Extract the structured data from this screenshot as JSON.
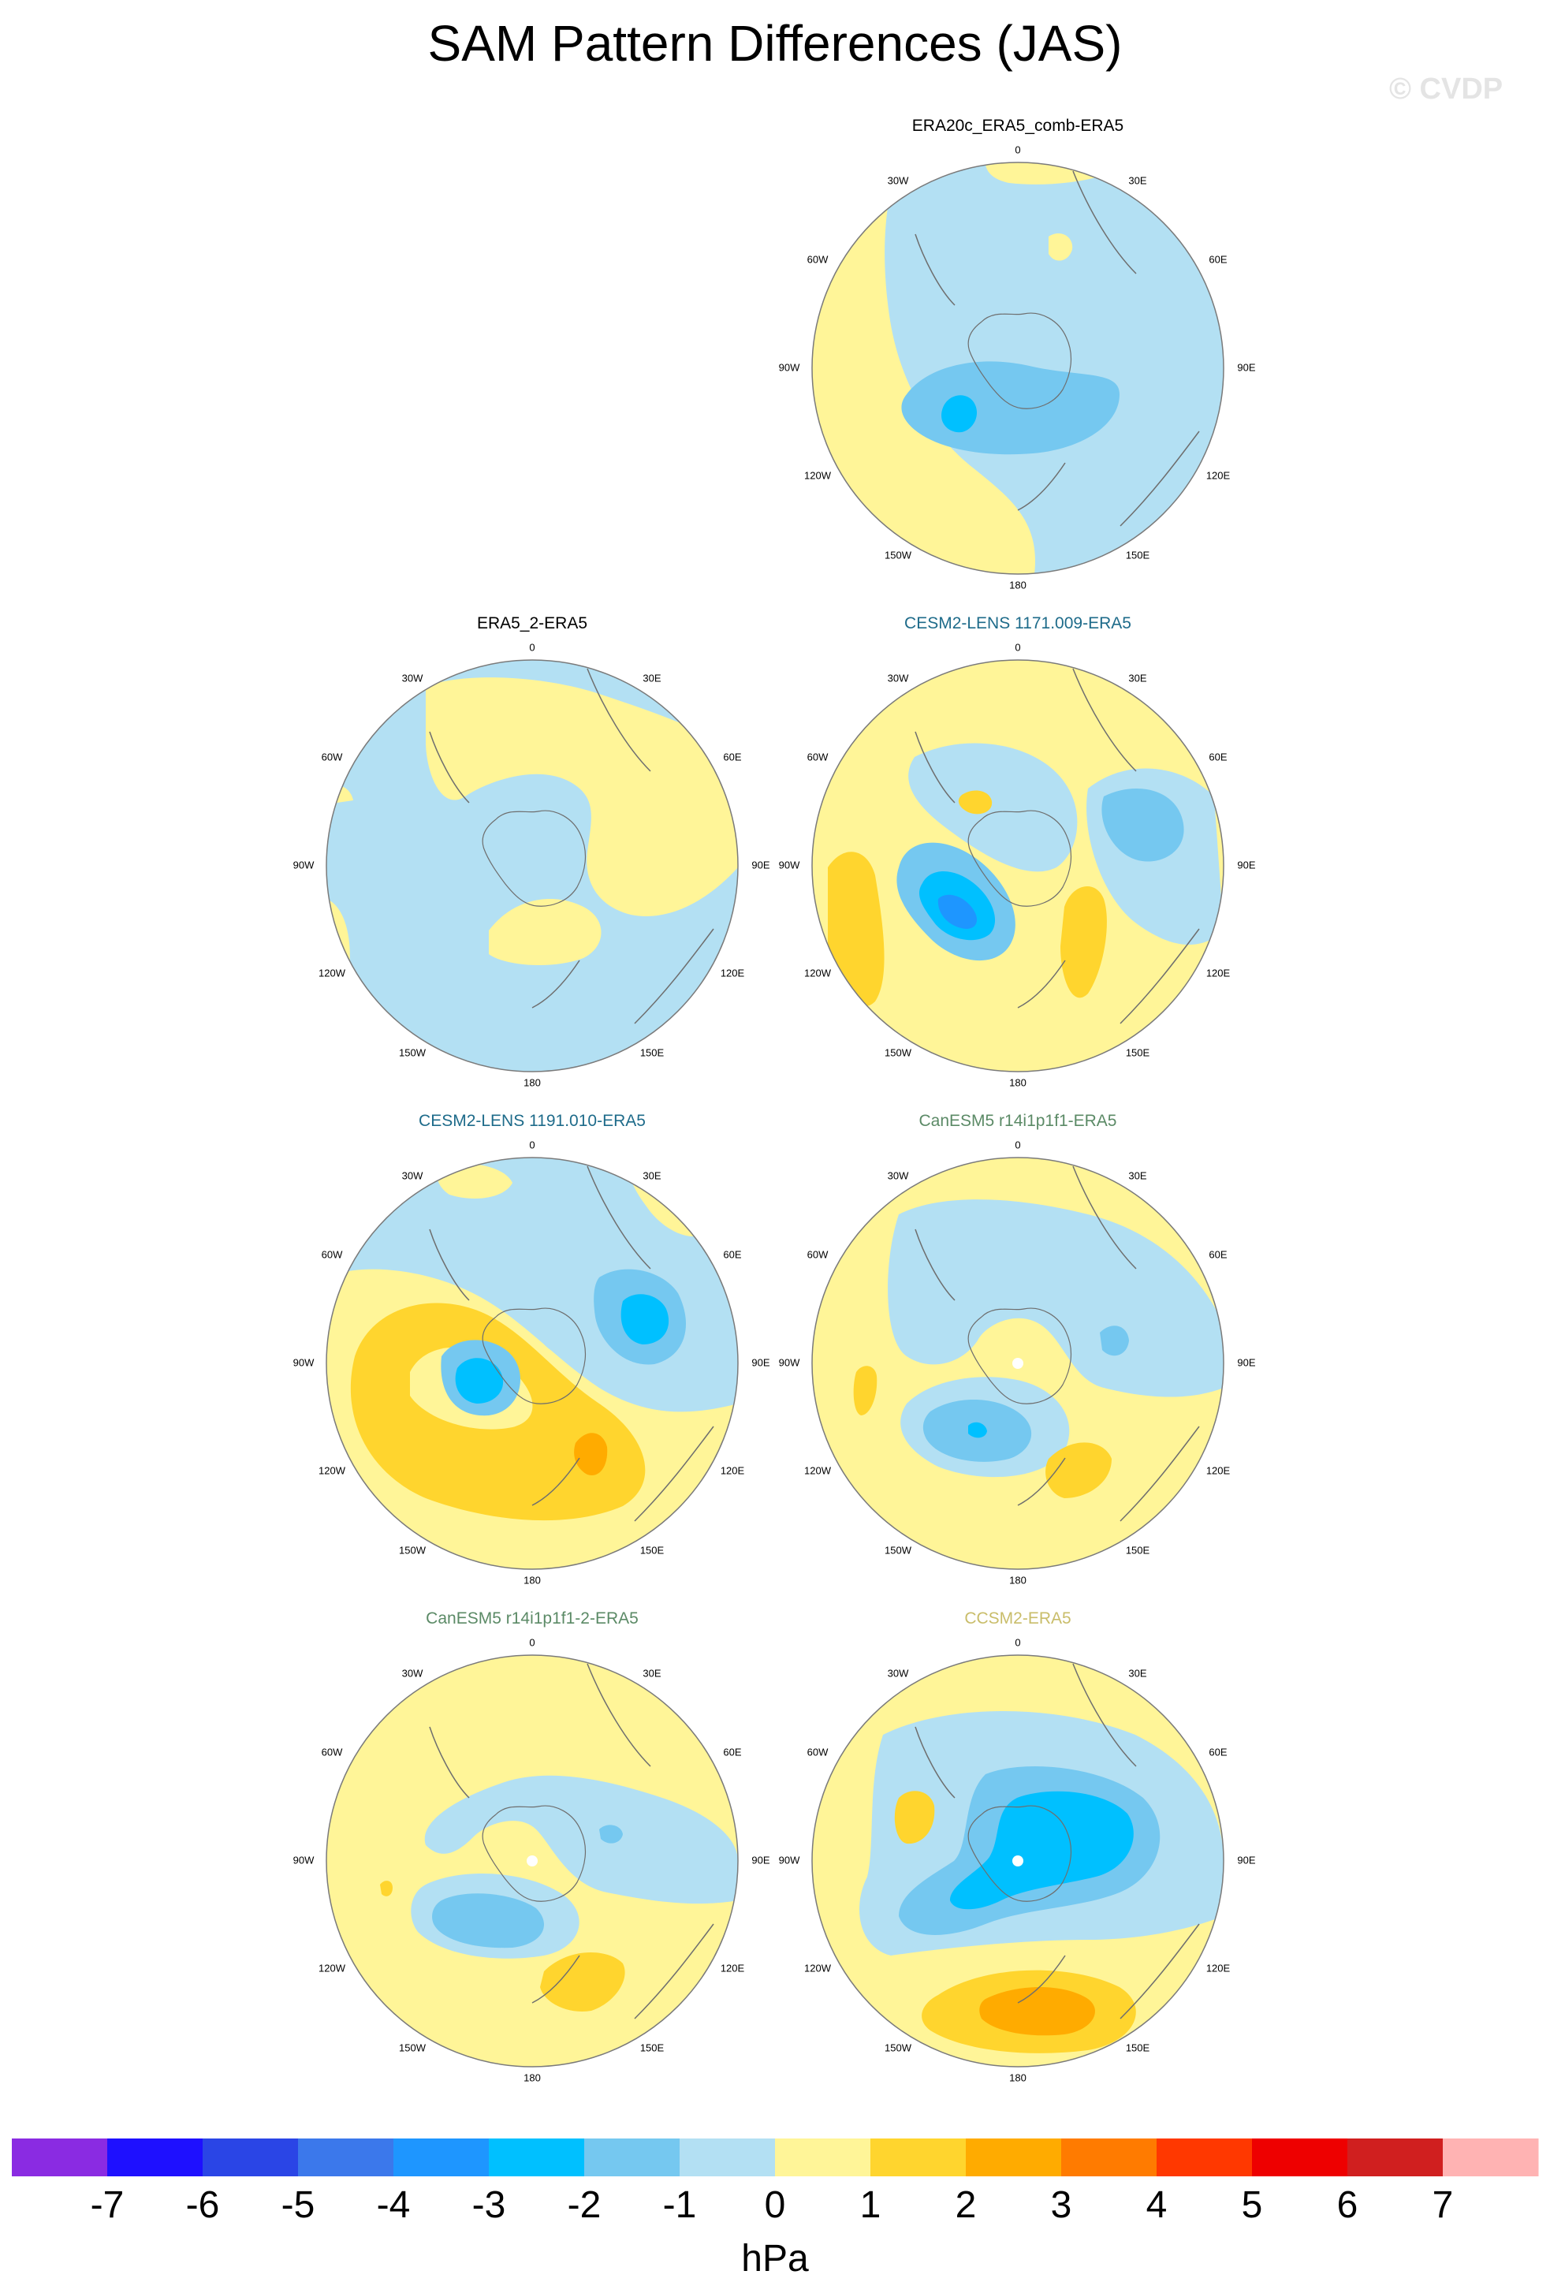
{
  "title": "SAM Pattern Differences (JAS)",
  "watermark": "© CVDP",
  "colors": {
    "land_outline": "#6e6e6e",
    "panel_border": "#7a7a7a",
    "title_black": "#000000",
    "title_teal": "#1e6b8a",
    "title_green": "#5b8a66",
    "title_tan": "#c9bd6a"
  },
  "degree_labels": {
    "lon_top": "0",
    "lon_30e": "30E",
    "lon_60e": "60E",
    "lon_90e": "90E",
    "lon_120e": "120E",
    "lon_150e": "150E",
    "lon_180": "180",
    "lon_150w": "150W",
    "lon_120w": "120W",
    "lon_90w": "90W",
    "lon_60w": "60W",
    "lon_30w": "30W"
  },
  "panels": [
    {
      "id": "era20c",
      "title": "ERA20c_ERA5_comb-ERA5",
      "title_color": "black",
      "background_level": "-1"
    },
    {
      "id": "era5-2",
      "title": "ERA5_2-ERA5",
      "title_color": "black",
      "background_level": "-1"
    },
    {
      "id": "cesm2-1171",
      "title": "CESM2-LENS 1171.009-ERA5",
      "title_color": "teal",
      "background_level": "0"
    },
    {
      "id": "cesm2-1191",
      "title": "CESM2-LENS 1191.010-ERA5",
      "title_color": "teal",
      "background_level": "-1"
    },
    {
      "id": "canesm5-r14",
      "title": "CanESM5 r14i1p1f1-ERA5",
      "title_color": "green",
      "background_level": "0"
    },
    {
      "id": "canesm5-r14-2",
      "title": "CanESM5 r14i1p1f1-2-ERA5",
      "title_color": "green",
      "background_level": "0"
    },
    {
      "id": "ccsm2",
      "title": "CCSM2-ERA5",
      "title_color": "tan",
      "background_level": "-1"
    }
  ],
  "colorbar": {
    "unit": "hPa",
    "tick_labels": [
      "-7",
      "-6",
      "-5",
      "-4",
      "-3",
      "-2",
      "-1",
      "0",
      "1",
      "2",
      "3",
      "4",
      "5",
      "6",
      "7"
    ],
    "colors": [
      "#8a2be2",
      "#1e10ff",
      "#2a45e6",
      "#3b78eb",
      "#1e96ff",
      "#00c0ff",
      "#75c8f0",
      "#b3e0f3",
      "#fff598",
      "#ffd52e",
      "#ffab00",
      "#ff7b00",
      "#ff3800",
      "#ee0000",
      "#d01f1f",
      "#ffb3b3"
    ]
  }
}
